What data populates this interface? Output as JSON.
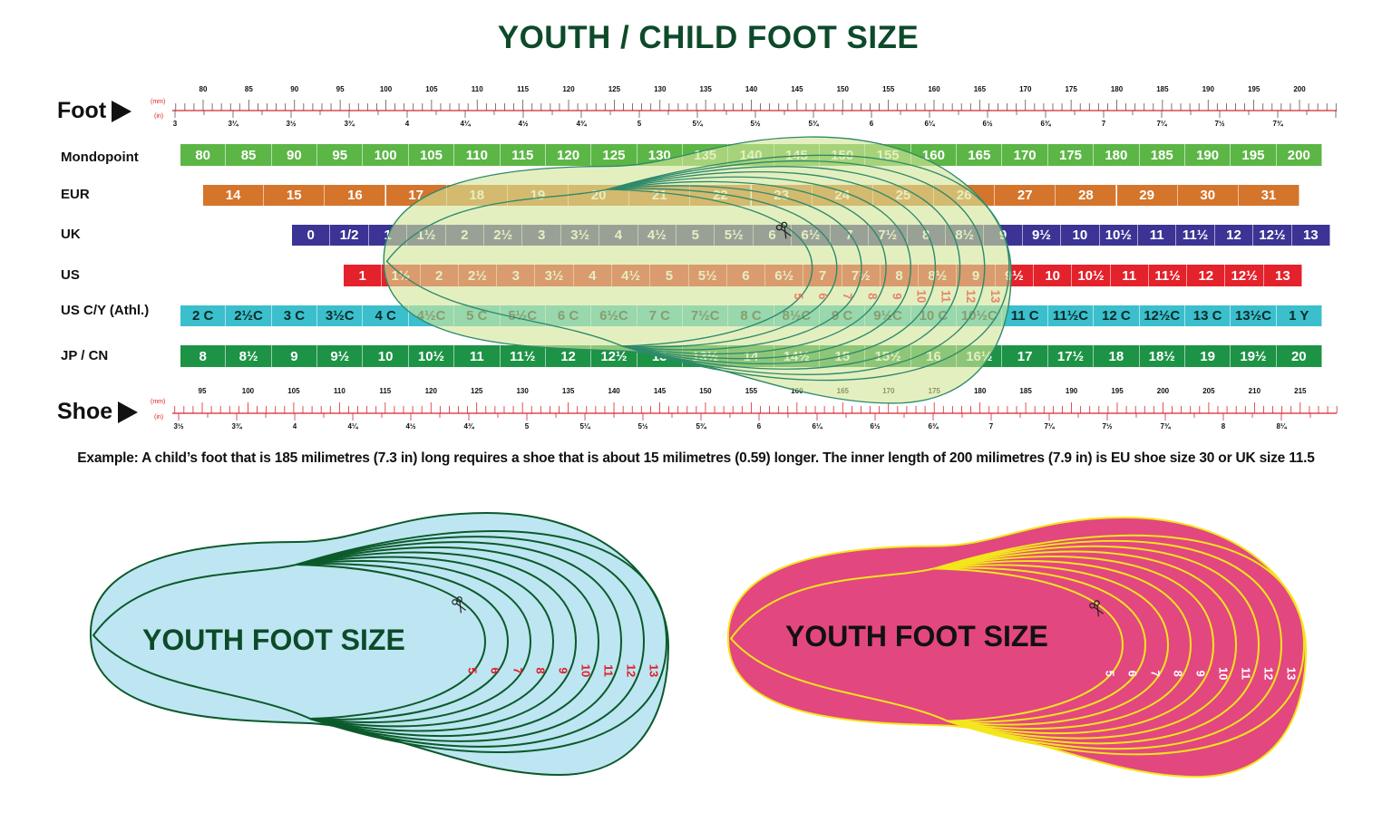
{
  "title": "YOUTH / CHILD FOOT SIZE",
  "foot_ruler": {
    "label": "Foot",
    "mm_unit": "(mm)",
    "in_unit": "(in)",
    "mm_labels": [
      "80",
      "85",
      "90",
      "95",
      "100",
      "105",
      "110",
      "115",
      "120",
      "125",
      "130",
      "135",
      "140",
      "145",
      "150",
      "155",
      "160",
      "165",
      "170",
      "175",
      "180",
      "185",
      "190",
      "195",
      "200"
    ],
    "in_labels": [
      "3",
      "3¼",
      "3½",
      "3¾",
      "4",
      "4¼",
      "4½",
      "4¾",
      "5",
      "5¼",
      "5½",
      "5¾",
      "6",
      "6¼",
      "6½",
      "6¾",
      "7",
      "7¼",
      "7½",
      "7¾"
    ]
  },
  "shoe_ruler": {
    "label": "Shoe",
    "mm_unit": "(mm)",
    "in_unit": "(in)",
    "mm_labels": [
      "95",
      "100",
      "105",
      "110",
      "115",
      "120",
      "125",
      "130",
      "135",
      "140",
      "145",
      "150",
      "155",
      "160",
      "165",
      "170",
      "175",
      "180",
      "185",
      "190",
      "195",
      "200",
      "205",
      "210",
      "215"
    ],
    "in_labels": [
      "3½",
      "3¾",
      "4",
      "4¼",
      "4½",
      "4¾",
      "5",
      "5¼",
      "5½",
      "5¾",
      "6",
      "6¼",
      "6½",
      "6¾",
      "7",
      "7¼",
      "7½",
      "7¾",
      "8",
      "8¼"
    ]
  },
  "rows": [
    {
      "label": "Mondopoint",
      "color": "#5cb646",
      "cells": [
        "80",
        "85",
        "90",
        "95",
        "100",
        "105",
        "110",
        "115",
        "120",
        "125",
        "130",
        "135",
        "140",
        "145",
        "150",
        "155",
        "160",
        "165",
        "170",
        "175",
        "180",
        "185",
        "190",
        "195",
        "200"
      ]
    },
    {
      "label": "EUR",
      "color": "#d5752b",
      "cells": [
        "14",
        "15",
        "16",
        "17",
        "18",
        "19",
        "20",
        "21",
        "22",
        "23",
        "24",
        "25",
        "26",
        "27",
        "28",
        "29",
        "30",
        "31"
      ]
    },
    {
      "label": "UK",
      "color": "#3b3494",
      "cells": [
        "0",
        "1/2",
        "1",
        "1½",
        "2",
        "2½",
        "3",
        "3½",
        "4",
        "4½",
        "5",
        "5½",
        "6",
        "6½",
        "7",
        "7½",
        "8",
        "8½",
        "9",
        "9½",
        "10",
        "10½",
        "11",
        "11½",
        "12",
        "12½",
        "13"
      ]
    },
    {
      "label": "US",
      "color": "#e4222b",
      "cells": [
        "1",
        "1½",
        "2",
        "2½",
        "3",
        "3½",
        "4",
        "4½",
        "5",
        "5½",
        "6",
        "6½",
        "7",
        "7½",
        "8",
        "8½",
        "9",
        "9½",
        "10",
        "10½",
        "11",
        "11½",
        "12",
        "12½",
        "13"
      ]
    },
    {
      "label": "US C/Y (Athl.)",
      "color": "#3bbfcc",
      "cells": [
        "2 C",
        "2½C",
        "3 C",
        "3½C",
        "4 C",
        "4½C",
        "5 C",
        "5½C",
        "6 C",
        "6½C",
        "7 C",
        "7½C",
        "8 C",
        "8½C",
        "9 C",
        "9½C",
        "10 C",
        "10½C",
        "11 C",
        "11½C",
        "12 C",
        "12½C",
        "13 C",
        "13½C",
        "1 Y"
      ]
    },
    {
      "label": "JP / CN",
      "color": "#1d9346",
      "cells": [
        "8",
        "8½",
        "9",
        "9½",
        "10",
        "10½",
        "11",
        "11½",
        "12",
        "12½",
        "13",
        "13½",
        "14",
        "14½",
        "15",
        "15½",
        "16",
        "16½",
        "17",
        "17½",
        "18",
        "18½",
        "19",
        "19½",
        "20"
      ]
    }
  ],
  "overlay_sizes": [
    "5",
    "6",
    "7",
    "8",
    "9",
    "10",
    "11",
    "12",
    "13"
  ],
  "example": "Example: A child’s foot that is 185 milimetres (7.3 in) long requires a shoe that is about 15 milimetres (0.59) longer. The inner length of 200 milimetres (7.9 in) is EU shoe size 30 or UK size 11.5",
  "cards": [
    {
      "title": "YOUTH FOOT SIZE",
      "sizes": [
        "5",
        "6",
        "7",
        "8",
        "9",
        "10",
        "11",
        "12",
        "13"
      ],
      "fill": "#bde6f2",
      "stroke": "#0b5a2a",
      "title_color": "#0d4a2a",
      "number_color": "#e0202a",
      "icon": "scissors-icon"
    },
    {
      "title": "YOUTH FOOT SIZE",
      "sizes": [
        "5",
        "6",
        "7",
        "8",
        "9",
        "10",
        "11",
        "12",
        "13"
      ],
      "fill": "#e3477f",
      "stroke": "#f3e61c",
      "title_color": "#111111",
      "number_color": "#ffffff",
      "icon": "scissors-icon"
    }
  ],
  "colors": {
    "title": "#0d4a2a",
    "ruler_red": "#d9252c",
    "overlay_fill": "#d3e59a",
    "overlay_stroke": "#2d8a6a"
  }
}
